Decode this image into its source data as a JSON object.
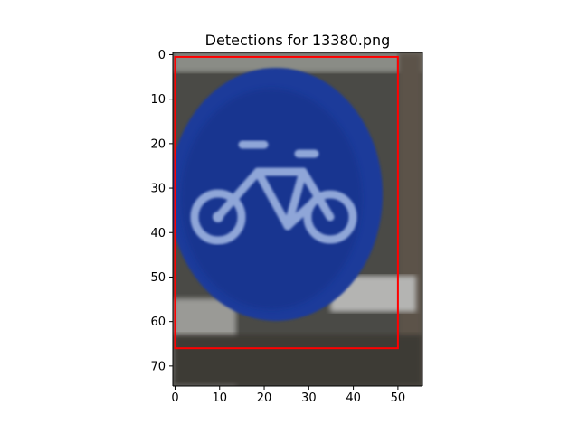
{
  "chart_data": {
    "type": "image",
    "title": "Detections for 13380.png",
    "xlabel": "",
    "ylabel": "",
    "xlim": [
      -0.5,
      55.5
    ],
    "ylim": [
      74.5,
      -0.5
    ],
    "y_inverted": true,
    "grid": false,
    "x_ticks": [
      0,
      10,
      20,
      30,
      40,
      50
    ],
    "y_ticks": [
      0,
      10,
      20,
      30,
      40,
      50,
      60,
      70
    ],
    "detections": [
      {
        "x": [
          0,
          50
        ],
        "y": [
          0.5,
          66
        ],
        "color": "#ff0000"
      }
    ],
    "image_colors": {
      "sign_blue": "#1c3a9a",
      "symbol": "#8fa6d8",
      "background_dark": "#3a3a3a",
      "background_light": "#c8c8c8"
    }
  }
}
